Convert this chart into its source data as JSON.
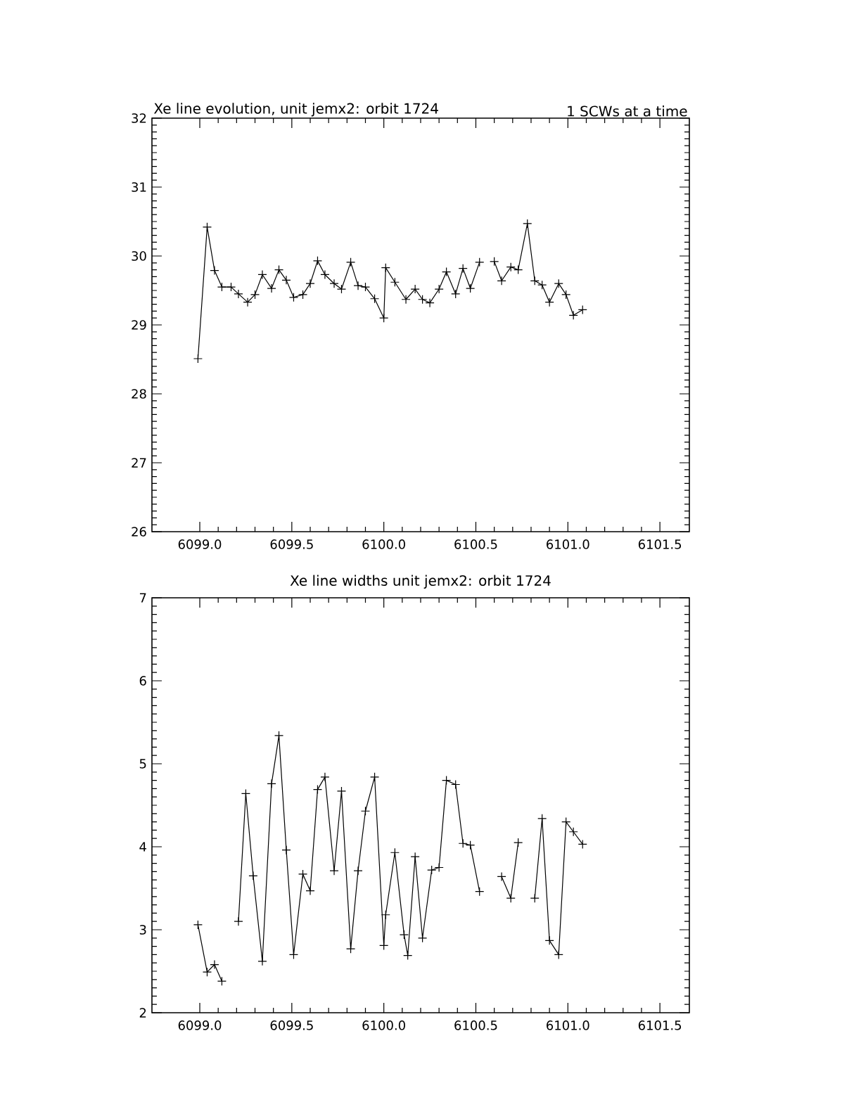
{
  "chart_data": [
    {
      "type": "line",
      "title": "Xe line evolution, unit jemx2: orbit 1724",
      "subtitle": "1 SCWs at a time",
      "color": "#000000",
      "marker": "cross",
      "x": [
        6098.99,
        6099.04,
        6099.08,
        6099.12,
        6099.17,
        6099.21,
        6099.26,
        6099.3,
        6099.34,
        6099.39,
        6099.43,
        6099.47,
        6099.51,
        6099.56,
        6099.6,
        6099.64,
        6099.68,
        6099.73,
        6099.77,
        6099.82,
        6099.86,
        6099.9,
        6099.95,
        6100.0,
        6100.01,
        6100.06,
        6100.12,
        6100.17,
        6100.21,
        6100.25,
        6100.3,
        6100.34,
        6100.39,
        6100.43,
        6100.47,
        6100.52,
        6100.56,
        6100.6,
        6100.64,
        6100.69,
        6100.73,
        6100.78,
        6100.82,
        6100.86,
        6100.9,
        6100.95,
        6100.99,
        6101.03,
        6101.08
      ],
      "values": [
        28.51,
        30.42,
        29.79,
        29.55,
        29.55,
        29.45,
        29.33,
        29.44,
        29.73,
        29.53,
        29.8,
        29.65,
        29.4,
        29.44,
        29.6,
        29.93,
        29.73,
        29.6,
        29.52,
        29.91,
        29.57,
        29.55,
        29.38,
        29.1,
        29.83,
        29.62,
        29.37,
        29.52,
        29.37,
        29.32,
        29.52,
        29.77,
        29.45,
        29.82,
        29.53,
        29.91,
        null,
        29.92,
        29.64,
        29.84,
        29.8,
        30.47,
        29.64,
        29.58,
        29.33,
        29.6,
        29.44,
        29.14,
        29.22
      ],
      "xlim": [
        6098.74,
        6101.66
      ],
      "xticks": [
        {
          "value": 6099.0,
          "label": "6099.0"
        },
        {
          "value": 6099.5,
          "label": "6099.5"
        },
        {
          "value": 6100.0,
          "label": "6100.0"
        },
        {
          "value": 6100.5,
          "label": "6100.5"
        },
        {
          "value": 6101.0,
          "label": "6101.0"
        },
        {
          "value": 6101.5,
          "label": "6101.5"
        }
      ],
      "ylim": [
        26,
        32
      ],
      "yticks": [
        26,
        27,
        28,
        29,
        30,
        31,
        32
      ],
      "grid": false
    },
    {
      "type": "line",
      "title": "Xe line widths unit jemx2: orbit 1724",
      "color": "#000000",
      "marker": "cross",
      "x": [
        6098.99,
        6099.04,
        6099.08,
        6099.12,
        6099.16,
        6099.21,
        6099.25,
        6099.29,
        6099.34,
        6099.39,
        6099.43,
        6099.47,
        6099.51,
        6099.56,
        6099.6,
        6099.64,
        6099.68,
        6099.73,
        6099.77,
        6099.82,
        6099.86,
        6099.9,
        6099.95,
        6100.0,
        6100.01,
        6100.06,
        6100.11,
        6100.13,
        6100.17,
        6100.21,
        6100.26,
        6100.3,
        6100.34,
        6100.39,
        6100.43,
        6100.47,
        6100.52,
        6100.56,
        6100.64,
        6100.69,
        6100.73,
        6100.77,
        6100.82,
        6100.86,
        6100.9,
        6100.95,
        6100.99,
        6101.03,
        6101.08
      ],
      "values": [
        3.06,
        2.49,
        2.58,
        2.38,
        null,
        3.1,
        4.64,
        3.65,
        2.62,
        4.76,
        5.34,
        3.96,
        2.7,
        3.67,
        3.47,
        4.69,
        4.84,
        3.71,
        4.67,
        2.77,
        3.71,
        4.43,
        4.84,
        2.81,
        3.18,
        3.93,
        2.94,
        2.69,
        3.88,
        2.9,
        3.72,
        3.75,
        4.8,
        4.75,
        4.04,
        4.02,
        3.46,
        null,
        3.64,
        3.38,
        4.05,
        null,
        3.38,
        4.34,
        2.87,
        2.7,
        4.3,
        4.18,
        4.03
      ],
      "xlim": [
        6098.74,
        6101.66
      ],
      "xticks": [
        {
          "value": 6099.0,
          "label": "6099.0"
        },
        {
          "value": 6099.5,
          "label": "6099.5"
        },
        {
          "value": 6100.0,
          "label": "6100.0"
        },
        {
          "value": 6100.5,
          "label": "6100.5"
        },
        {
          "value": 6101.0,
          "label": "6101.0"
        },
        {
          "value": 6101.5,
          "label": "6101.5"
        }
      ],
      "ylim": [
        2,
        7
      ],
      "yticks": [
        2,
        3,
        4,
        5,
        6,
        7
      ],
      "grid": false
    }
  ]
}
